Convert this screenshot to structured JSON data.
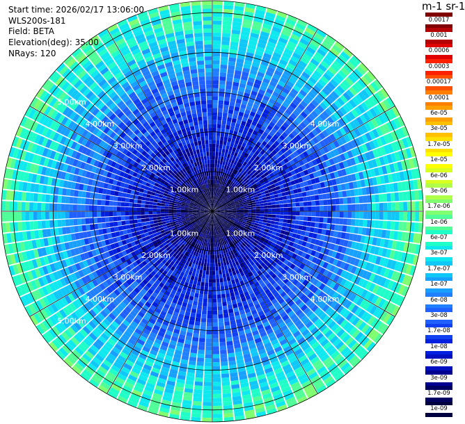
{
  "header": {
    "start_time": "Start time: 2026/02/17 13:06:00",
    "instrument": "WLS200s-181",
    "field": "Field: BETA",
    "elevation": "Elevation(deg): 35.00",
    "nrays": "NRays: 120"
  },
  "colorbar": {
    "title": "m-1 sr-1",
    "labels": [
      "0.0017",
      "0.001",
      "0.0006",
      "0.0003",
      "0.00017",
      "0.0001",
      "6e-05",
      "3e-05",
      "1.7e-05",
      "1e-05",
      "6e-06",
      "3e-06",
      "1.7e-06",
      "1e-06",
      "6e-07",
      "3e-07",
      "1.7e-07",
      "1e-07",
      "6e-08",
      "3e-08",
      "1.7e-08",
      "1e-08",
      "6e-09",
      "3e-09",
      "1.7e-09",
      "1e-09"
    ],
    "colors": [
      "#800000",
      "#b40000",
      "#e00000",
      "#ff2000",
      "#ff5000",
      "#ff8000",
      "#ffa000",
      "#ffc000",
      "#ffe000",
      "#ffff00",
      "#d8ff20",
      "#b0ff48",
      "#80ff70",
      "#50ff98",
      "#20ffc8",
      "#10e8f0",
      "#10c8f8",
      "#18a0ff",
      "#2080ff",
      "#2060ff",
      "#1040f0",
      "#0020e0",
      "#0010c0",
      "#000090",
      "#000060",
      "#000040"
    ]
  },
  "chart_data": {
    "type": "heatmap",
    "projection": "PPI polar scan",
    "field": "BETA",
    "elevation_deg": 35.0,
    "nrays": 120,
    "range_rings_km": [
      1,
      2,
      3,
      4,
      5
    ],
    "ring_labels": [
      "1.00km",
      "2.00km",
      "3.00km",
      "4.00km",
      "5.00km"
    ],
    "range_profile": {
      "range_km": [
        0.0,
        0.5,
        1.0,
        1.5,
        2.0,
        2.5,
        3.0,
        3.5,
        4.0,
        4.5,
        5.0,
        5.3
      ],
      "beta_m-1_sr-1": [
        1e-09,
        1e-09,
        3e-09,
        6e-09,
        1e-08,
        1.7e-08,
        3e-08,
        6e-08,
        1.7e-07,
        3e-07,
        6e-07,
        1e-06
      ]
    },
    "colorbar_min": 1e-09,
    "colorbar_max": 0.0017,
    "colorbar_scale": "log",
    "grid": true
  }
}
